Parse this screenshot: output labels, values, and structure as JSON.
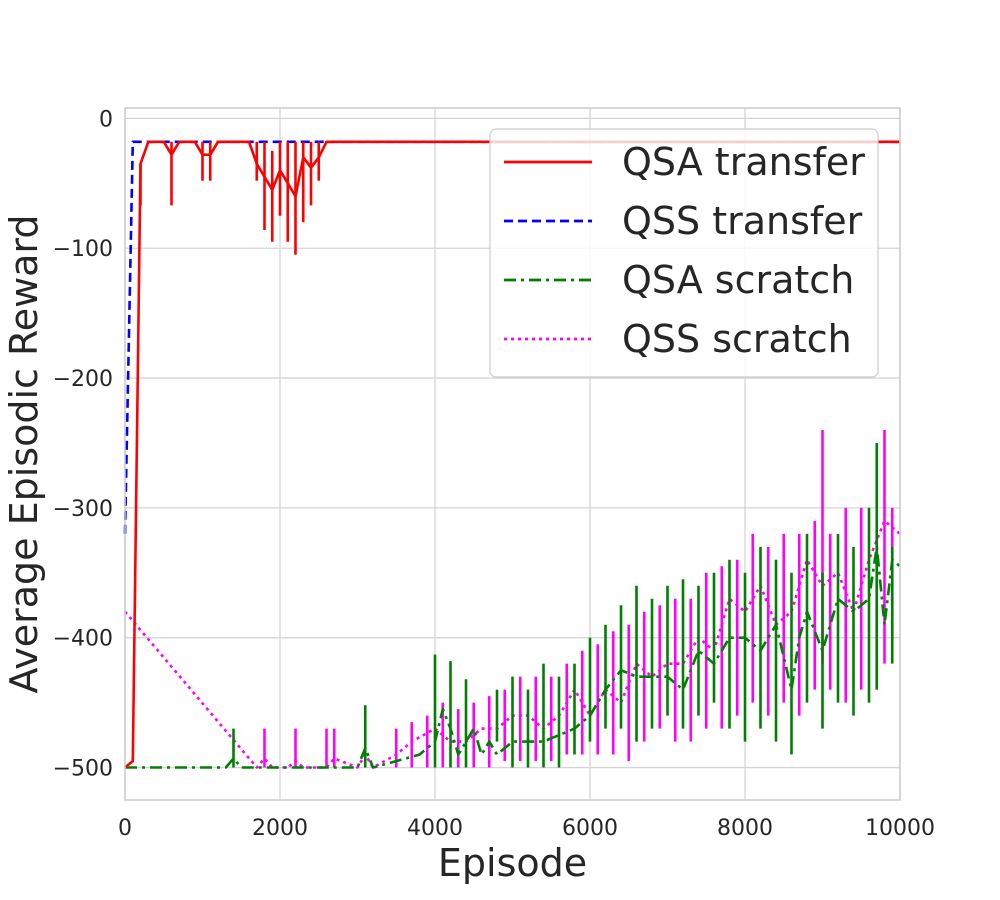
{
  "chart_data": {
    "type": "line",
    "title": "",
    "xlabel": "Episode",
    "ylabel": "Average Episodic Reward",
    "xlim": [
      0,
      10000
    ],
    "ylim": [
      -525,
      8
    ],
    "xticks": [
      0,
      2000,
      4000,
      6000,
      8000,
      10000
    ],
    "yticks": [
      0,
      -100,
      -200,
      -300,
      -400,
      -500
    ],
    "xtick_labels": [
      "0",
      "2000",
      "4000",
      "6000",
      "8000",
      "10000"
    ],
    "ytick_labels": [
      "0",
      "−100",
      "−200",
      "−300",
      "−400",
      "−500"
    ],
    "grid": true,
    "legend_position": "top-right",
    "series": [
      {
        "name": "QSA transfer",
        "color": "#ff0000",
        "style": "solid",
        "x": [
          0,
          100,
          200,
          300,
          400,
          500,
          600,
          700,
          800,
          900,
          1000,
          1100,
          1200,
          1300,
          1400,
          1500,
          1600,
          1700,
          1800,
          1900,
          2000,
          2100,
          2200,
          2300,
          2400,
          2500,
          2600,
          2700,
          2800,
          3000,
          4000,
          5000,
          6000,
          7000,
          8000,
          9000,
          10000
        ],
        "y": [
          -500,
          -495,
          -35,
          -18,
          -18,
          -18,
          -28,
          -18,
          -18,
          -18,
          -28,
          -28,
          -18,
          -18,
          -18,
          -18,
          -18,
          -35,
          -45,
          -55,
          -40,
          -50,
          -60,
          -30,
          -38,
          -30,
          -18,
          -18,
          -18,
          -18,
          -18,
          -18,
          -18,
          -18,
          -18,
          -18,
          -18
        ],
        "spikes": [
          [
            200,
            -35,
            -67
          ],
          [
            600,
            -18,
            -67
          ],
          [
            1000,
            -18,
            -48
          ],
          [
            1100,
            -18,
            -48
          ],
          [
            1700,
            -18,
            -48
          ],
          [
            1800,
            -18,
            -86
          ],
          [
            1900,
            -25,
            -95
          ],
          [
            2000,
            -18,
            -75
          ],
          [
            2100,
            -18,
            -95
          ],
          [
            2200,
            -18,
            -105
          ],
          [
            2300,
            -18,
            -80
          ],
          [
            2400,
            -18,
            -67
          ],
          [
            2500,
            -18,
            -48
          ]
        ]
      },
      {
        "name": "QSS transfer",
        "color": "#0000ff",
        "style": "dashed",
        "x": [
          0,
          100,
          200,
          500,
          1000,
          2000,
          3000,
          4000,
          5000,
          6000,
          7000,
          8000,
          9000,
          10000
        ],
        "y": [
          -320,
          -18,
          -18,
          -18,
          -18,
          -18,
          -18,
          -18,
          -18,
          -18,
          -18,
          -18,
          -18,
          -18
        ]
      },
      {
        "name": "QSA scratch",
        "color": "#008000",
        "style": "dashdot",
        "x": [
          0,
          1300,
          1400,
          1500,
          1600,
          3000,
          3100,
          3200,
          3500,
          3800,
          4000,
          4100,
          4200,
          4300,
          4500,
          4600,
          4700,
          4800,
          5000,
          5200,
          5400,
          5600,
          5800,
          6000,
          6200,
          6400,
          6600,
          6800,
          7000,
          7200,
          7400,
          7600,
          7800,
          8000,
          8200,
          8400,
          8600,
          8700,
          8800,
          9000,
          9200,
          9400,
          9600,
          9700,
          9800,
          9900,
          10000
        ],
        "y": [
          -500,
          -500,
          -493,
          -500,
          -500,
          -500,
          -485,
          -500,
          -495,
          -490,
          -480,
          -455,
          -470,
          -490,
          -470,
          -490,
          -480,
          -490,
          -480,
          -480,
          -480,
          -475,
          -470,
          -460,
          -440,
          -425,
          -430,
          -430,
          -430,
          -440,
          -410,
          -420,
          -400,
          -400,
          -410,
          -390,
          -440,
          -400,
          -380,
          -410,
          -370,
          -380,
          -370,
          -330,
          -390,
          -340,
          -345
        ],
        "spikes": [
          [
            1400,
            -470,
            -500
          ],
          [
            3100,
            -452,
            -500
          ],
          [
            4000,
            -413,
            -500
          ],
          [
            4200,
            -418,
            -500
          ],
          [
            4400,
            -432,
            -500
          ],
          [
            4800,
            -440,
            -480
          ],
          [
            5000,
            -430,
            -500
          ],
          [
            5200,
            -440,
            -500
          ],
          [
            5400,
            -420,
            -500
          ],
          [
            5600,
            -430,
            -500
          ],
          [
            5800,
            -420,
            -490
          ],
          [
            6000,
            -400,
            -480
          ],
          [
            6200,
            -390,
            -470
          ],
          [
            6400,
            -375,
            -470
          ],
          [
            6600,
            -360,
            -480
          ],
          [
            6800,
            -370,
            -470
          ],
          [
            7000,
            -360,
            -460
          ],
          [
            7200,
            -355,
            -470
          ],
          [
            7400,
            -360,
            -460
          ],
          [
            7600,
            -350,
            -450
          ],
          [
            7800,
            -340,
            -470
          ],
          [
            8000,
            -350,
            -480
          ],
          [
            8200,
            -330,
            -470
          ],
          [
            8400,
            -340,
            -480
          ],
          [
            8600,
            -350,
            -490
          ],
          [
            8800,
            -320,
            -450
          ],
          [
            9000,
            -350,
            -470
          ],
          [
            9200,
            -320,
            -450
          ],
          [
            9400,
            -330,
            -460
          ],
          [
            9600,
            -300,
            -450
          ],
          [
            9700,
            -250,
            -440
          ],
          [
            9900,
            -330,
            -420
          ]
        ]
      },
      {
        "name": "QSS scratch",
        "color": "#ff00ff",
        "style": "dotted",
        "x": [
          0,
          1700,
          1800,
          1900,
          2100,
          2200,
          2300,
          2600,
          2700,
          3000,
          3100,
          3200,
          3500,
          3700,
          4000,
          4200,
          4400,
          4600,
          4800,
          5000,
          5200,
          5400,
          5600,
          5800,
          6000,
          6200,
          6400,
          6600,
          6800,
          7000,
          7200,
          7400,
          7600,
          7800,
          8000,
          8200,
          8400,
          8600,
          8800,
          9000,
          9200,
          9400,
          9600,
          9800,
          10000
        ],
        "y": [
          -380,
          -500,
          -493,
          -500,
          -500,
          -495,
          -500,
          -500,
          -493,
          -500,
          -490,
          -500,
          -490,
          -480,
          -470,
          -480,
          -480,
          -470,
          -470,
          -460,
          -460,
          -470,
          -460,
          -440,
          -460,
          -440,
          -450,
          -420,
          -430,
          -420,
          -420,
          -400,
          -410,
          -370,
          -380,
          -360,
          -390,
          -380,
          -340,
          -360,
          -350,
          -380,
          -340,
          -310,
          -320
        ],
        "spikes": [
          [
            1800,
            -470,
            -500
          ],
          [
            2200,
            -470,
            -500
          ],
          [
            2600,
            -470,
            -500
          ],
          [
            2700,
            -470,
            -500
          ],
          [
            3500,
            -470,
            -500
          ],
          [
            3700,
            -465,
            -500
          ],
          [
            3900,
            -460,
            -500
          ],
          [
            4100,
            -450,
            -500
          ],
          [
            4300,
            -455,
            -500
          ],
          [
            4500,
            -450,
            -500
          ],
          [
            4700,
            -445,
            -500
          ],
          [
            4900,
            -440,
            -495
          ],
          [
            5100,
            -430,
            -495
          ],
          [
            5300,
            -430,
            -495
          ],
          [
            5500,
            -430,
            -495
          ],
          [
            5700,
            -420,
            -490
          ],
          [
            5900,
            -410,
            -490
          ],
          [
            6100,
            -405,
            -490
          ],
          [
            6300,
            -395,
            -490
          ],
          [
            6500,
            -390,
            -495
          ],
          [
            6700,
            -380,
            -480
          ],
          [
            6900,
            -375,
            -470
          ],
          [
            7100,
            -370,
            -480
          ],
          [
            7300,
            -370,
            -480
          ],
          [
            7500,
            -350,
            -470
          ],
          [
            7700,
            -345,
            -470
          ],
          [
            7900,
            -340,
            -460
          ],
          [
            8100,
            -320,
            -450
          ],
          [
            8300,
            -330,
            -460
          ],
          [
            8500,
            -320,
            -450
          ],
          [
            8700,
            -320,
            -460
          ],
          [
            8900,
            -310,
            -440
          ],
          [
            9000,
            -240,
            -420
          ],
          [
            9100,
            -320,
            -440
          ],
          [
            9300,
            -300,
            -450
          ],
          [
            9500,
            -300,
            -440
          ],
          [
            9700,
            -320,
            -440
          ],
          [
            9800,
            -240,
            -420
          ],
          [
            9900,
            -300,
            -400
          ]
        ]
      }
    ]
  }
}
